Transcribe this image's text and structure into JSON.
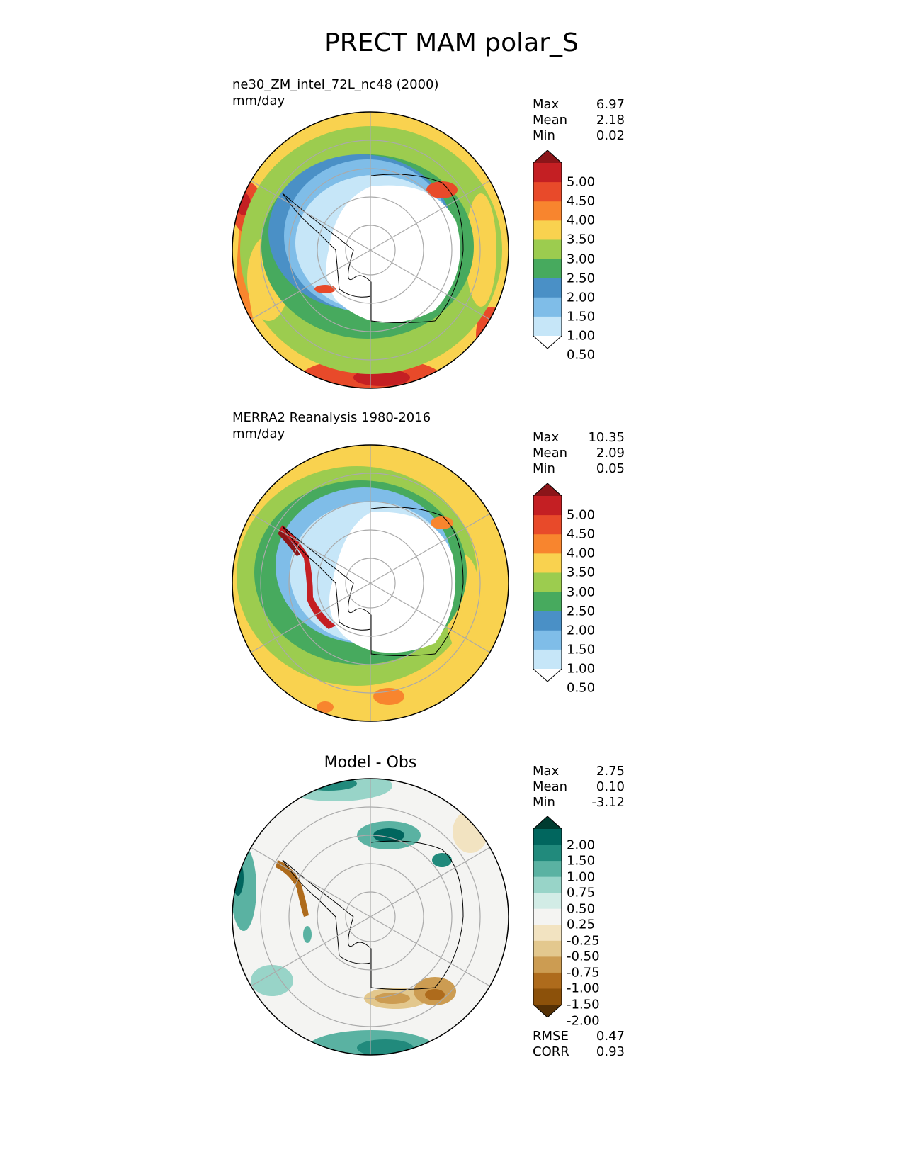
{
  "title": "PRECT MAM polar_S",
  "panels": [
    {
      "id": "test",
      "title_line1": "ne30_ZM_intel_72L_nc48 (2000)",
      "title_line2": "mm/day",
      "center_title": "",
      "stats": {
        "max_label": "Max",
        "max": "6.97",
        "mean_label": "Mean",
        "mean": "2.18",
        "min_label": "Min",
        "min": "0.02"
      },
      "colorbar": {
        "levels": [
          "0.50",
          "1.00",
          "1.50",
          "2.00",
          "2.50",
          "3.00",
          "3.50",
          "4.00",
          "4.50",
          "5.00"
        ],
        "colors": [
          "#ffffff",
          "#c6e6f8",
          "#7fbde8",
          "#4a90c6",
          "#47aa5e",
          "#9ccc4f",
          "#f9d24f",
          "#f8852e",
          "#e84a2a",
          "#c41f23",
          "#8b1519"
        ]
      }
    },
    {
      "id": "ref",
      "title_line1": "MERRA2 Reanalysis 1980-2016",
      "title_line2": "mm/day",
      "center_title": "",
      "stats": {
        "max_label": "Max",
        "max": "10.35",
        "mean_label": "Mean",
        "mean": "2.09",
        "min_label": "Min",
        "min": "0.05"
      },
      "colorbar": {
        "levels": [
          "0.50",
          "1.00",
          "1.50",
          "2.00",
          "2.50",
          "3.00",
          "3.50",
          "4.00",
          "4.50",
          "5.00"
        ],
        "colors": [
          "#ffffff",
          "#c6e6f8",
          "#7fbde8",
          "#4a90c6",
          "#47aa5e",
          "#9ccc4f",
          "#f9d24f",
          "#f8852e",
          "#e84a2a",
          "#c41f23",
          "#8b1519"
        ]
      }
    },
    {
      "id": "diff",
      "title_line1": "",
      "title_line2": "",
      "center_title": "Model - Obs",
      "stats": {
        "max_label": "Max",
        "max": "2.75",
        "mean_label": "Mean",
        "mean": "0.10",
        "min_label": "Min",
        "min": "-3.12"
      },
      "colorbar": {
        "levels": [
          "-2.00",
          "-1.50",
          "-1.00",
          "-0.75",
          "-0.50",
          "-0.25",
          "0.25",
          "0.50",
          "0.75",
          "1.00",
          "1.50",
          "2.00"
        ],
        "colors": [
          "#543005",
          "#8c510a",
          "#ae6b1c",
          "#cc9c52",
          "#e3c88e",
          "#f2e3c1",
          "#f4f4f2",
          "#d2ece6",
          "#98d4c8",
          "#5ab2a2",
          "#218a7c",
          "#01665e",
          "#003c30"
        ]
      },
      "metrics": {
        "rmse_label": "RMSE",
        "rmse": "0.47",
        "corr_label": "CORR",
        "corr": "0.93"
      }
    }
  ],
  "chart_data": [
    {
      "type": "heatmap",
      "projection": "south polar stereographic",
      "title": "ne30_ZM_intel_72L_nc48 (2000)",
      "units": "mm/day",
      "field": "PRECT",
      "season": "MAM",
      "max": 6.97,
      "mean": 2.18,
      "min": 0.02,
      "contour_levels": [
        0.5,
        1.0,
        1.5,
        2.0,
        2.5,
        3.0,
        3.5,
        4.0,
        4.5,
        5.0
      ],
      "pattern": "dry (<0.5) over Antarctic interior, 1-2 near the coast, 2.5-3.5 over the Southern Ocean, 4-5+ in mid-latitude storm-track patches"
    },
    {
      "type": "heatmap",
      "projection": "south polar stereographic",
      "title": "MERRA2 Reanalysis 1980-2016",
      "units": "mm/day",
      "field": "PRECT",
      "season": "MAM",
      "max": 10.35,
      "mean": 2.09,
      "min": 0.05,
      "contour_levels": [
        0.5,
        1.0,
        1.5,
        2.0,
        2.5,
        3.0,
        3.5,
        4.0,
        4.5,
        5.0
      ],
      "pattern": "dry interior, narrow >5 band along the Antarctic Peninsula west coast, 3-3.5 over outer ocean"
    },
    {
      "type": "heatmap",
      "projection": "south polar stereographic",
      "title": "Model - Obs",
      "max": 2.75,
      "mean": 0.1,
      "min": -3.12,
      "rmse": 0.47,
      "corr": 0.93,
      "contour_levels": [
        -2.0,
        -1.5,
        -1.0,
        -0.75,
        -0.5,
        -0.25,
        0.25,
        0.5,
        0.75,
        1.0,
        1.5,
        2.0
      ],
      "pattern": "positive along the East Antarctic coast and outer ring; negative along the Peninsula and south of Australia"
    }
  ]
}
